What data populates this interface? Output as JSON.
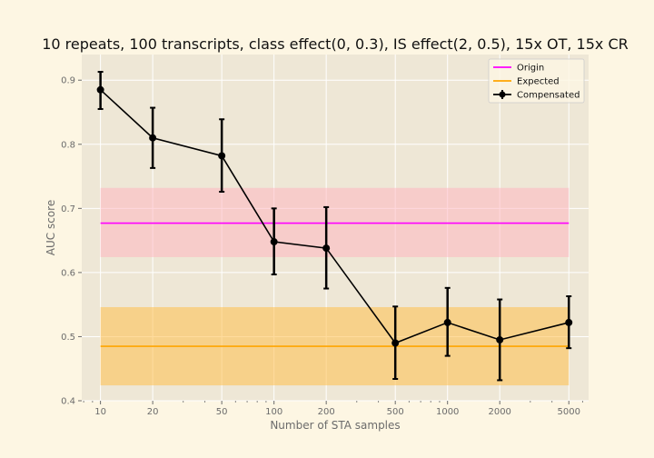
{
  "chart_data": {
    "type": "line",
    "title": "10 repeats, 100 transcripts, class effect(0, 0.3), IS effect(2, 0.5), 15x OT, 15x CR",
    "xlabel": "Number of STA samples",
    "ylabel": "AUC score",
    "xscale": "log",
    "xlim": [
      7.8,
      6500
    ],
    "ylim": [
      0.4,
      0.94
    ],
    "x_ticks": [
      10,
      20,
      50,
      100,
      200,
      500,
      1000,
      2000,
      5000
    ],
    "x_tick_labels": [
      "10",
      "20",
      "50",
      "100",
      "200",
      "500",
      "1000",
      "2000",
      "5000"
    ],
    "y_ticks": [
      0.4,
      0.5,
      0.6,
      0.7,
      0.8,
      0.9
    ],
    "y_tick_labels": [
      "0.4",
      "0.5",
      "0.6",
      "0.7",
      "0.8",
      "0.9"
    ],
    "grid": true,
    "legend_position": "top-right",
    "series": [
      {
        "name": "Origin",
        "kind": "hline",
        "color": "#ff00ff",
        "x": [
          10,
          5000
        ],
        "value": 0.677,
        "band": [
          0.624,
          0.732
        ],
        "band_color": "#ffb6c1"
      },
      {
        "name": "Expected",
        "kind": "hline",
        "color": "#ffa500",
        "x": [
          10,
          5000
        ],
        "value": 0.485,
        "band": [
          0.424,
          0.546
        ],
        "band_color": "#ffc04d"
      },
      {
        "name": "Compensated",
        "kind": "errorbar",
        "color": "#000000",
        "x": [
          10,
          20,
          50,
          100,
          200,
          500,
          1000,
          2000,
          5000
        ],
        "y": [
          0.885,
          0.81,
          0.782,
          0.648,
          0.638,
          0.49,
          0.522,
          0.495,
          0.522
        ],
        "yerr_low": [
          0.855,
          0.763,
          0.726,
          0.597,
          0.575,
          0.434,
          0.47,
          0.432,
          0.482
        ],
        "yerr_high": [
          0.913,
          0.857,
          0.839,
          0.7,
          0.702,
          0.547,
          0.576,
          0.558,
          0.563
        ]
      }
    ]
  }
}
